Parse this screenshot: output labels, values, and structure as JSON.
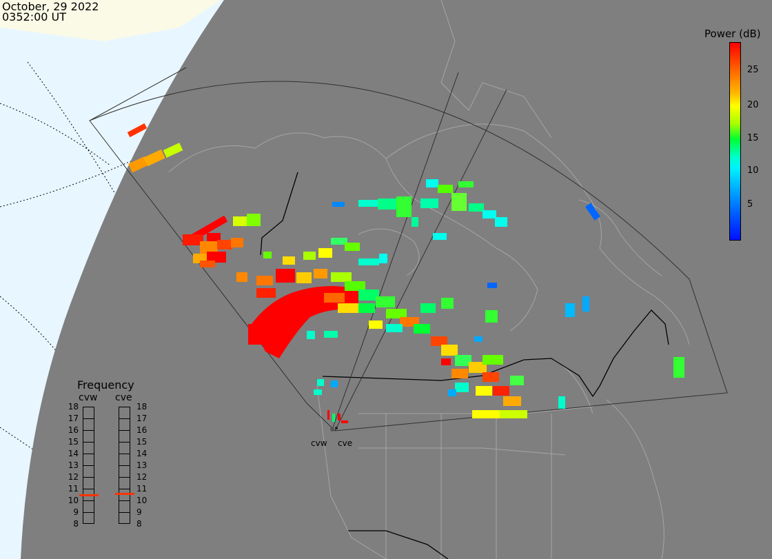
{
  "header": {
    "date": "October, 29 2022",
    "time": "0352:00 UT"
  },
  "colorbar": {
    "title": "Power (dB)",
    "ticks": [
      "25",
      "20",
      "15",
      "10",
      "5"
    ],
    "range_db": [
      0,
      30
    ],
    "colors": [
      "#ff0000",
      "#ff6600",
      "#ffff00",
      "#00ff33",
      "#00ffff",
      "#0010ff"
    ]
  },
  "frequency_panel": {
    "title": "Frequency",
    "radars": [
      {
        "name": "cvw",
        "freq_mhz": 10.5
      },
      {
        "name": "cve",
        "freq_mhz": 10.6
      }
    ],
    "scale": [
      "18",
      "17",
      "16",
      "15",
      "14",
      "13",
      "12",
      "11",
      "10",
      "9",
      "8"
    ]
  },
  "sites": [
    {
      "name": "cvw"
    },
    {
      "name": "cve"
    }
  ],
  "colors": {
    "night_side": "#7f7f7f",
    "day_ocean": "#e8f6ff",
    "day_land": "#fafae6",
    "coastline": "#aaaaaa",
    "border": "#000000"
  }
}
